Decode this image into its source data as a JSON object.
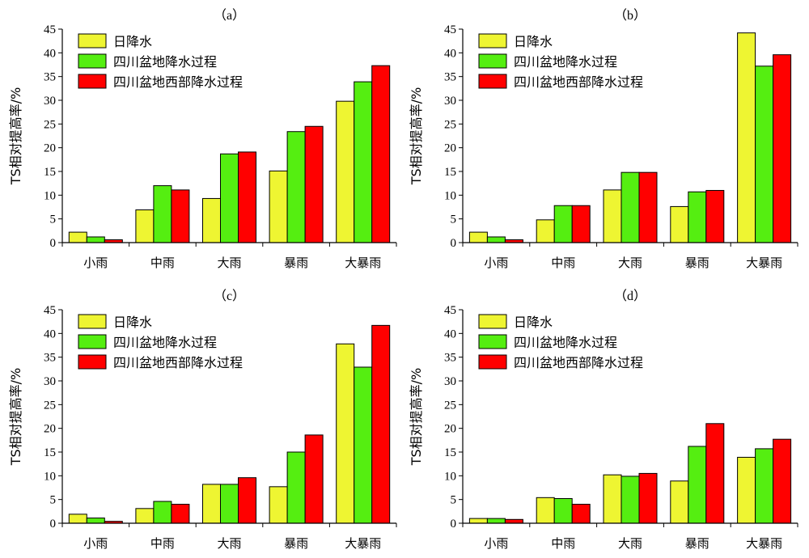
{
  "chart_data": [
    {
      "type": "bar",
      "title": "（a）",
      "ylabel": "TS相对提高率/%",
      "xlabel": "",
      "ylim": [
        0,
        45
      ],
      "yticks": [
        0,
        5,
        10,
        15,
        20,
        25,
        30,
        35,
        40,
        45
      ],
      "categories": [
        "小雨",
        "中雨",
        "大雨",
        "暴雨",
        "大暴雨"
      ],
      "legend_position": "top-left",
      "series": [
        {
          "name": "日降水",
          "color": "#eef532",
          "values": [
            2.2,
            6.9,
            9.3,
            15.1,
            29.8
          ]
        },
        {
          "name": "四川盆地降水过程",
          "color": "#55ee11",
          "values": [
            1.2,
            12.0,
            18.7,
            23.4,
            33.9
          ]
        },
        {
          "name": "四川盆地西部降水过程",
          "color": "#ff0000",
          "values": [
            0.6,
            11.1,
            19.1,
            24.5,
            37.3
          ]
        }
      ]
    },
    {
      "type": "bar",
      "title": "（b）",
      "ylabel": "TS相对提高率/%",
      "xlabel": "",
      "ylim": [
        0,
        45
      ],
      "yticks": [
        0,
        5,
        10,
        15,
        20,
        25,
        30,
        35,
        40,
        45
      ],
      "categories": [
        "小雨",
        "中雨",
        "大雨",
        "暴雨",
        "大暴雨"
      ],
      "legend_position": "top-left",
      "series": [
        {
          "name": "日降水",
          "color": "#eef532",
          "values": [
            2.2,
            4.8,
            11.1,
            7.6,
            44.2
          ]
        },
        {
          "name": "四川盆地降水过程",
          "color": "#55ee11",
          "values": [
            1.2,
            7.8,
            14.8,
            10.7,
            37.2
          ]
        },
        {
          "name": "四川盆地西部降水过程",
          "color": "#ff0000",
          "values": [
            0.6,
            7.8,
            14.8,
            11.0,
            39.6
          ]
        }
      ]
    },
    {
      "type": "bar",
      "title": "（c）",
      "ylabel": "TS相对提高率/%",
      "xlabel": "",
      "ylim": [
        0,
        45
      ],
      "yticks": [
        0,
        5,
        10,
        15,
        20,
        25,
        30,
        35,
        40,
        45
      ],
      "categories": [
        "小雨",
        "中雨",
        "大雨",
        "暴雨",
        "大暴雨"
      ],
      "legend_position": "top-left",
      "series": [
        {
          "name": "日降水",
          "color": "#eef532",
          "values": [
            1.9,
            3.1,
            8.2,
            7.7,
            37.8
          ]
        },
        {
          "name": "四川盆地降水过程",
          "color": "#55ee11",
          "values": [
            1.1,
            4.6,
            8.2,
            15.0,
            32.9
          ]
        },
        {
          "name": "四川盆地西部降水过程",
          "color": "#ff0000",
          "values": [
            0.4,
            4.0,
            9.6,
            18.6,
            41.7
          ]
        }
      ]
    },
    {
      "type": "bar",
      "title": "（d）",
      "ylabel": "TS相对提高率/%",
      "xlabel": "",
      "ylim": [
        0,
        45
      ],
      "yticks": [
        0,
        5,
        10,
        15,
        20,
        25,
        30,
        35,
        40,
        45
      ],
      "categories": [
        "小雨",
        "中雨",
        "大雨",
        "暴雨",
        "大暴雨"
      ],
      "legend_position": "top-left",
      "series": [
        {
          "name": "日降水",
          "color": "#eef532",
          "values": [
            1.0,
            5.4,
            10.2,
            8.9,
            13.9
          ]
        },
        {
          "name": "四川盆地降水过程",
          "color": "#55ee11",
          "values": [
            1.0,
            5.2,
            9.9,
            16.2,
            15.7
          ]
        },
        {
          "name": "四川盆地西部降水过程",
          "color": "#ff0000",
          "values": [
            0.8,
            4.0,
            10.5,
            21.0,
            17.7
          ]
        }
      ]
    }
  ]
}
